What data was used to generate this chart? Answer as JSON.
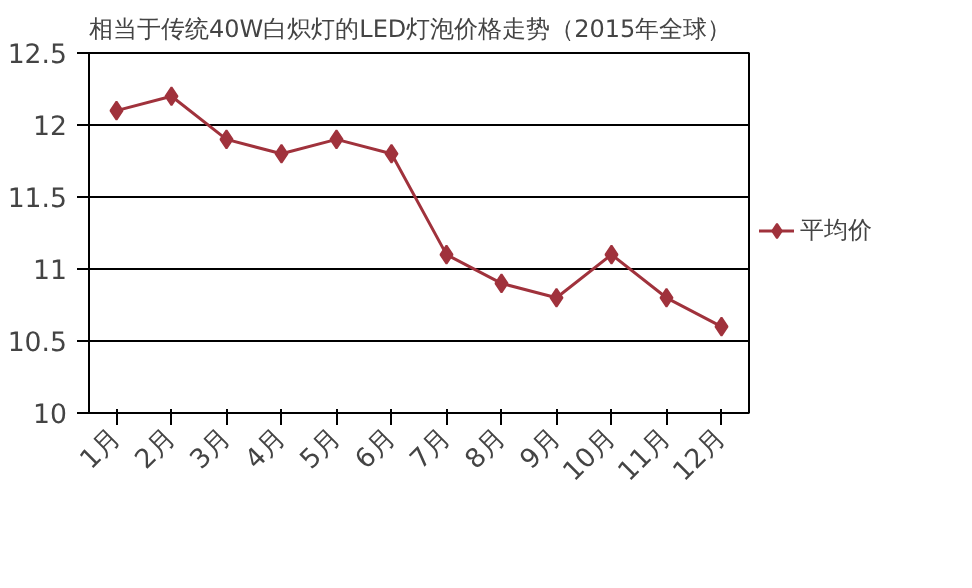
{
  "chart_data": {
    "type": "line",
    "title": "相当于传统40W白炽灯的LED灯泡价格走势（2015年全球）",
    "categories": [
      "1月",
      "2月",
      "3月",
      "4月",
      "5月",
      "6月",
      "7月",
      "8月",
      "9月",
      "10月",
      "11月",
      "12月"
    ],
    "series": [
      {
        "name": "平均价",
        "color": "#a0323c",
        "values": [
          12.1,
          12.2,
          11.9,
          11.8,
          11.9,
          11.8,
          11.1,
          10.9,
          10.8,
          11.1,
          10.8,
          10.6
        ]
      }
    ],
    "ylim": [
      10,
      12.5
    ],
    "yticks": [
      10,
      10.5,
      11,
      11.5,
      12,
      12.5
    ],
    "grid": "y",
    "legend": "right",
    "marker": "diamond",
    "line_style": "solid"
  }
}
